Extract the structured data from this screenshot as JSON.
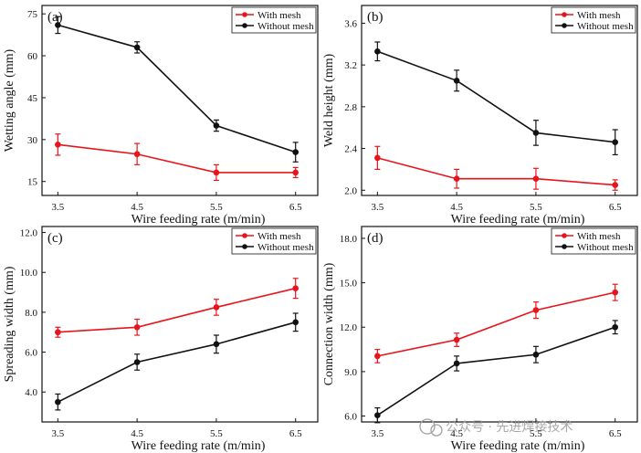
{
  "chart_data": [
    {
      "type": "line",
      "panel_label": "(a)",
      "xlabel": "Wire feeding rate (m/min)",
      "ylabel": "Wetting angle (mm)",
      "x": [
        3.5,
        4.5,
        5.5,
        6.5
      ],
      "xtick_labels": [
        "3.5",
        "4.5",
        "5.5",
        "6.5"
      ],
      "ytick_labels": [
        "15",
        "30",
        "45",
        "60",
        "75"
      ],
      "ylim": [
        10,
        78
      ],
      "legend_position": "top-right",
      "series": [
        {
          "name": "With mesh",
          "color": "#e8141c",
          "values": [
            28.2,
            24.8,
            18.2,
            18.2
          ],
          "errors": [
            3.8,
            3.8,
            2.8,
            1.8
          ]
        },
        {
          "name": "Without mesh",
          "color": "#111111",
          "values": [
            71.0,
            63.0,
            35.0,
            25.5
          ],
          "errors": [
            3.0,
            2.0,
            2.0,
            3.5
          ]
        }
      ]
    },
    {
      "type": "line",
      "panel_label": "(b)",
      "xlabel": "Wire feeding rate (m/min)",
      "ylabel": "Weld height (mm)",
      "x": [
        3.5,
        4.5,
        5.5,
        6.5
      ],
      "xtick_labels": [
        "3.5",
        "4.5",
        "5.5",
        "6.5"
      ],
      "ytick_labels": [
        "2.0",
        "2.4",
        "2.8",
        "3.2",
        "3.6"
      ],
      "ylim": [
        1.95,
        3.77
      ],
      "legend_position": "top-right",
      "series": [
        {
          "name": "With mesh",
          "color": "#e8141c",
          "values": [
            2.31,
            2.11,
            2.11,
            2.05
          ],
          "errors": [
            0.11,
            0.09,
            0.1,
            0.05
          ]
        },
        {
          "name": "Without mesh",
          "color": "#111111",
          "values": [
            3.33,
            3.05,
            2.55,
            2.46
          ],
          "errors": [
            0.09,
            0.1,
            0.12,
            0.12
          ]
        }
      ]
    },
    {
      "type": "line",
      "panel_label": "(c)",
      "xlabel": "Wire feeding rate (m/min)",
      "ylabel": "Spreading width (mm)",
      "x": [
        3.5,
        4.5,
        5.5,
        6.5
      ],
      "xtick_labels": [
        "3.5",
        "4.5",
        "5.5",
        "6.5"
      ],
      "ytick_labels": [
        "4.0",
        "6.0",
        "8.0",
        "10.0",
        "12.0"
      ],
      "ylim": [
        2.5,
        12.3
      ],
      "legend_position": "top-right",
      "series": [
        {
          "name": "With mesh",
          "color": "#e8141c",
          "values": [
            7.0,
            7.25,
            8.25,
            9.2
          ],
          "errors": [
            0.25,
            0.4,
            0.4,
            0.5
          ]
        },
        {
          "name": "Without mesh",
          "color": "#111111",
          "values": [
            3.5,
            5.5,
            6.4,
            7.5
          ],
          "errors": [
            0.4,
            0.4,
            0.45,
            0.45
          ]
        }
      ]
    },
    {
      "type": "line",
      "panel_label": "(d)",
      "xlabel": "Wire feeding rate (m/min)",
      "ylabel": "Connection width (mm)",
      "x": [
        3.5,
        4.5,
        5.5,
        6.5
      ],
      "xtick_labels": [
        "3.5",
        "4.5",
        "5.5",
        "6.5"
      ],
      "ytick_labels": [
        "6.0",
        "9.0",
        "12.0",
        "15.0",
        "18.0"
      ],
      "ylim": [
        5.6,
        18.8
      ],
      "legend_position": "top-right",
      "series": [
        {
          "name": "With mesh",
          "color": "#e8141c",
          "values": [
            10.05,
            11.15,
            13.15,
            14.35
          ],
          "errors": [
            0.45,
            0.45,
            0.55,
            0.55
          ]
        },
        {
          "name": "Without mesh",
          "color": "#111111",
          "values": [
            6.05,
            9.55,
            10.15,
            12.0
          ],
          "errors": [
            0.5,
            0.5,
            0.55,
            0.45
          ]
        }
      ]
    }
  ],
  "watermark": {
    "text": "公众号 · 先进焊接技术"
  }
}
